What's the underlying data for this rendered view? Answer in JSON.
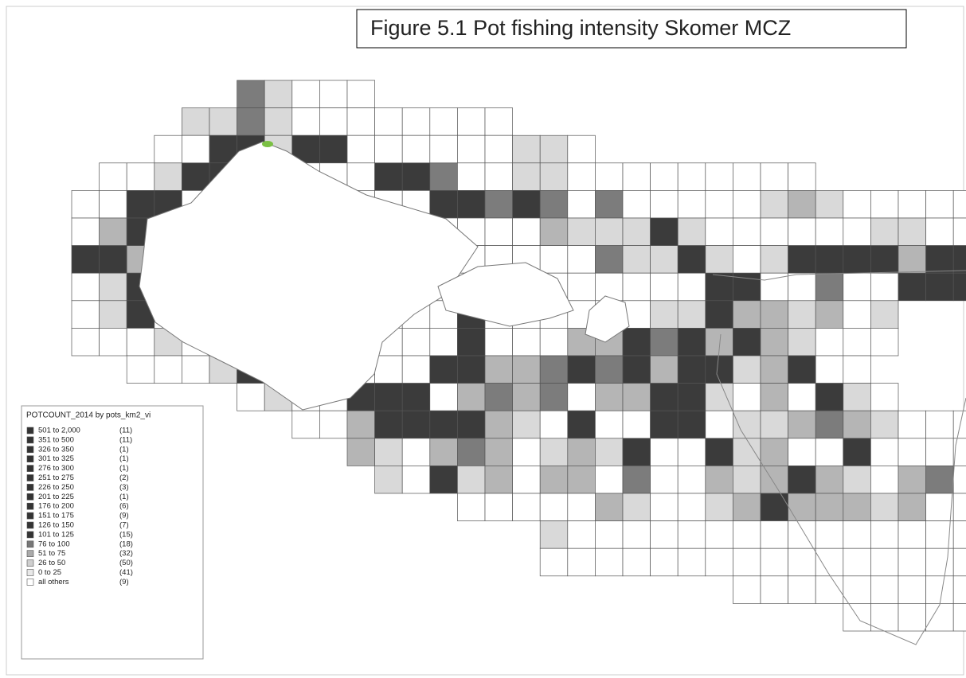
{
  "header": {
    "title": "Figure 5.1 Pot fishing intensity Skomer MCZ"
  },
  "legend": {
    "title": "POTCOUNT_2014 by pots_km2_vi",
    "items": [
      {
        "range": "501 to 2,000",
        "count": "(11)"
      },
      {
        "range": "351 to 500",
        "count": "(11)"
      },
      {
        "range": "326 to 350",
        "count": "(1)"
      },
      {
        "range": "301 to 325",
        "count": "(1)"
      },
      {
        "range": "276 to 300",
        "count": "(1)"
      },
      {
        "range": "251 to 275",
        "count": "(2)"
      },
      {
        "range": "226 to 250",
        "count": "(3)"
      },
      {
        "range": "201 to 225",
        "count": "(1)"
      },
      {
        "range": "176 to 200",
        "count": "(6)"
      },
      {
        "range": "151 to 175",
        "count": "(9)"
      },
      {
        "range": "126 to 150",
        "count": "(7)"
      },
      {
        "range": "101 to 125",
        "count": "(15)"
      },
      {
        "range": "76 to 100",
        "count": "(18)"
      },
      {
        "range": "51 to 75",
        "count": "(32)"
      },
      {
        "range": "26 to 50",
        "count": "(50)"
      },
      {
        "range": "0 to 25",
        "count": "(41)"
      },
      {
        "range": "all others",
        "count": "(9)"
      }
    ]
  }
}
